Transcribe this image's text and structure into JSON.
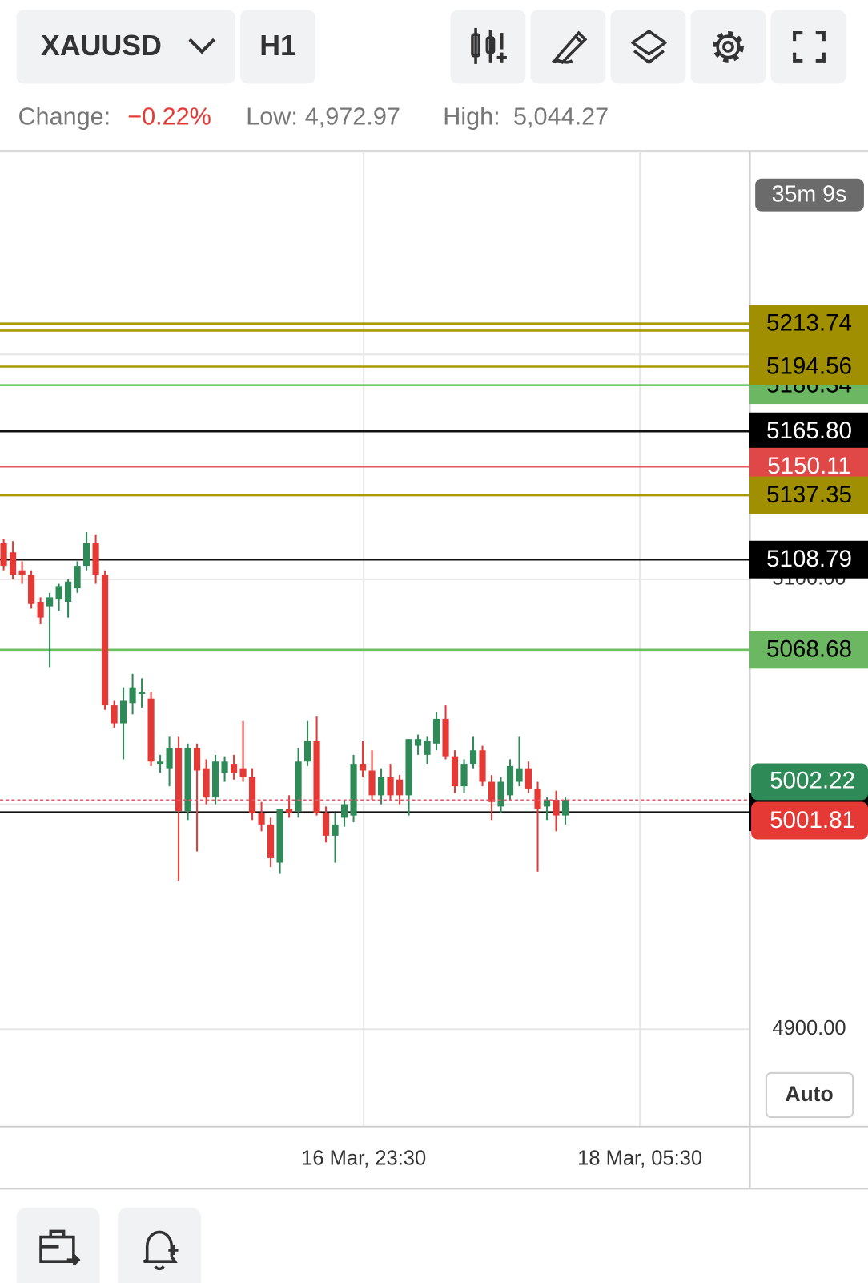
{
  "toolbar": {
    "symbol": "XAUUSD",
    "timeframe": "H1"
  },
  "stats": {
    "change_label": "Change:",
    "change_value": "−0.22%",
    "low_label": "Low:",
    "low_value": "4,972.97",
    "high_label": "High:",
    "high_value": "5,044.27"
  },
  "chart_data": {
    "type": "candlestick",
    "open": [
      5116,
      5112,
      5104,
      5102,
      5090,
      5088,
      5091,
      5090,
      5096,
      5106,
      5116,
      5102,
      5044,
      5036,
      5045,
      5049,
      5047,
      5018,
      5016,
      5025,
      4997,
      5025,
      5016,
      5003,
      5014,
      5018,
      5016,
      5012,
      4996,
      4991,
      4974,
      4998,
      4997,
      5019,
      5028,
      4996,
      4986,
      4994,
      4995,
      5018,
      5015,
      5004,
      5012,
      5011,
      5004,
      5026,
      5022,
      5027,
      5038,
      5021,
      5008,
      5018,
      5024,
      5010,
      4999,
      5004,
      5010,
      5016,
      5007,
      4999,
      5002,
      4995
    ],
    "high": [
      5118,
      5117,
      5108,
      5104,
      5092,
      5094,
      5098,
      5100,
      5108,
      5121,
      5120,
      5104,
      5046,
      5052,
      5058,
      5056,
      5050,
      5022,
      5030,
      5030,
      5027,
      5027,
      5020,
      5022,
      5021,
      5022,
      5037,
      5016,
      5001,
      4994,
      4998,
      5004,
      5025,
      5037,
      5039,
      4999,
      4996,
      5002,
      5022,
      5028,
      5024,
      5016,
      5018,
      5013,
      5029,
      5031,
      5030,
      5041,
      5044,
      5024,
      5020,
      5030,
      5026,
      5013,
      5012,
      5020,
      5030,
      5019,
      5010,
      5003,
      5006,
      5003
    ],
    "low": [
      5104,
      5100,
      5098,
      5087,
      5080,
      5061,
      5086,
      5083,
      5094,
      5104,
      5098,
      5042,
      5034,
      5020,
      5040,
      5043,
      5017,
      5014,
      5008,
      4966,
      4993,
      4979,
      5000,
      5000,
      5010,
      5011,
      5010,
      4993,
      4988,
      4972,
      4969,
      4994,
      4994,
      5017,
      4995,
      4983,
      4974,
      4990,
      4992,
      5012,
      5002,
      5000,
      5002,
      5000,
      4995,
      5022,
      5018,
      5024,
      5020,
      5005,
      5005,
      5016,
      5008,
      4993,
      4996,
      5002,
      5008,
      5005,
      4970,
      4993,
      4988,
      4991
    ],
    "close": [
      5106,
      5102,
      5102,
      5089,
      5083,
      5092,
      5097,
      5099,
      5106,
      5116,
      5102,
      5044,
      5036,
      5046,
      5052,
      5050,
      5019,
      5019,
      5025,
      4997,
      5025,
      5015,
      5003,
      5019,
      5019,
      5014,
      5012,
      4996,
      4991,
      4976,
      4998,
      4996,
      5019,
      5028,
      4996,
      4986,
      4991,
      5000,
      5018,
      5015,
      5004,
      5012,
      5004,
      5004,
      5029,
      5029,
      5028,
      5038,
      5021,
      5008,
      5018,
      5024,
      5010,
      5001,
      5010,
      5017,
      5016,
      5007,
      4998,
      5002,
      4995,
      5002
    ],
    "up_color": "#2e8b57",
    "down_color": "#e53935",
    "xlim": [
      -0.4,
      81
    ],
    "xticks": [
      {
        "value": 39.1,
        "label": "16 Mar, 23:30"
      },
      {
        "value": 69.1,
        "label": "18 Mar, 05:30"
      }
    ],
    "ylim": [
      4856.7,
      5290.2
    ],
    "yticks": [
      {
        "value": 4900,
        "label": "4900.00"
      },
      {
        "value": 5000,
        "label": "5000.00"
      },
      {
        "value": 5100,
        "label": "5100.00"
      },
      {
        "value": 5200,
        "label": "5200.00"
      }
    ],
    "grid": true,
    "price_lines": [
      {
        "price": 5210.62,
        "color": "#a89a00",
        "box": "#a08f00",
        "text": "#000000"
      },
      {
        "price": 5213.74,
        "color": "#a89a00",
        "box": "#a08f00",
        "text": "#000000"
      },
      {
        "price": 5186.34,
        "color": "#6abf5e",
        "box": "#6cb862",
        "text": "#000000"
      },
      {
        "price": 5194.56,
        "color": "#a89a00",
        "box": "#a08f00",
        "text": "#000000"
      },
      {
        "price": 5165.8,
        "label": "5165.80",
        "color": "#111111",
        "box": "#000000",
        "text": "#ffffff"
      },
      {
        "price": 5150.11,
        "color": "#e0585b",
        "box": "#e04848",
        "text": "#ffffff"
      },
      {
        "price": 5137.35,
        "color": "#a89a00",
        "box": "#a08f00",
        "text": "#000000"
      },
      {
        "price": 5108.79,
        "color": "#111111",
        "box": "#000000",
        "text": "#ffffff"
      },
      {
        "price": 5068.68,
        "color": "#6abf5e",
        "box": "#6cb862",
        "text": "#000000"
      },
      {
        "price": 4996.43,
        "color": "#111111",
        "box": "#000000",
        "text": "#ffffff"
      }
    ],
    "bid": {
      "price": 5002.22,
      "box": "#2e8b57",
      "text": "#ffffff"
    },
    "ask": {
      "price": 5001.81,
      "color": "#e05a6a",
      "box": "#e53935",
      "text": "#ffffff"
    },
    "countdown": "35m 9s"
  },
  "scale_button": "Auto"
}
